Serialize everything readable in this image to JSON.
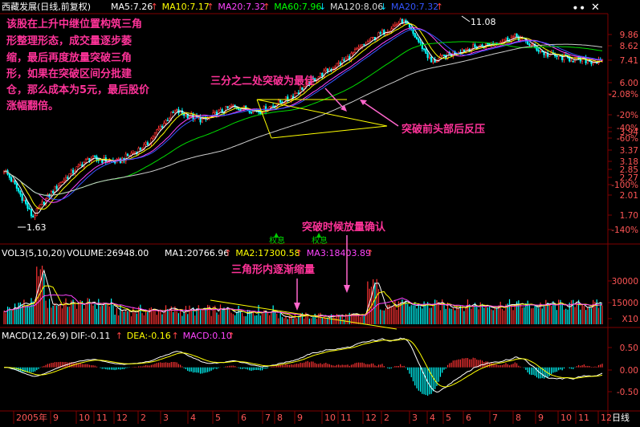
{
  "header": {
    "stock_name": "西藏发展(日线,前复权)",
    "ma_items": [
      {
        "label": "MA5:7.26",
        "arrow": "↑",
        "color": "#ffffff"
      },
      {
        "label": "MA10:7.17",
        "arrow": "↑",
        "color": "#ffff00"
      },
      {
        "label": "MA20:7.32",
        "arrow": "↑",
        "color": "#ff44ff"
      },
      {
        "label": "MA60:7.96",
        "arrow": "↓",
        "color": "#00ff00"
      },
      {
        "label": "MA120:8.06",
        "arrow": "↓",
        "color": "#dddddd"
      },
      {
        "label": "MA20:7.32",
        "arrow": "↑",
        "color": "#3355ff"
      }
    ]
  },
  "volume_header": {
    "label": "VOL3(5,10,20)",
    "volume": "VOLUME:26948.00",
    "ma_items": [
      {
        "label": "MA1:20766.96",
        "arrow": "↑",
        "color": "#ffffff"
      },
      {
        "label": "MA2:17300.58",
        "arrow": "↑",
        "color": "#ffff00"
      },
      {
        "label": "MA3:18403.89",
        "arrow": "↑",
        "color": "#ff44ff"
      }
    ]
  },
  "macd_header": {
    "label": "MACD(12,26,9)",
    "items": [
      {
        "label": "DIF:-0.11",
        "arrow": "↑",
        "color": "#ffffff"
      },
      {
        "label": "DEA:-0.16",
        "arrow": "↑",
        "color": "#ffff00"
      },
      {
        "label": "MACD:0.10",
        "arrow": "↑",
        "color": "#ff44ff"
      }
    ]
  },
  "annotations": {
    "main_note": [
      "该股在上升中继位置构筑三角",
      "形整理形态，成交量逐步萎",
      "缩，最后再度放量突破三角",
      "形，如果在突破区间分批建",
      "仓，那么成本为5元，最后股价",
      "涨幅翻倍。"
    ],
    "breakout_point": "三分之二处突破为最佳",
    "pullback": "突破前头部后反压",
    "volume_confirm": "突破时候放量确认",
    "volume_shrink": "三角形内逐渐缩量",
    "ex_rights_1": "权息",
    "ex_rights_2": "权息",
    "high_label": "11.08",
    "low_label": "1.63"
  },
  "price_axis": [
    "9.86",
    "8.62",
    "7.41",
    "6.00",
    "-2.08%",
    "-20%",
    "-40%",
    "3.94",
    "-60%",
    "3.37",
    "3.18",
    "2.85",
    "2.27",
    "-100%",
    "2.01",
    "1.70",
    "-140%"
  ],
  "volume_axis": [
    "30000",
    "15000",
    "X10"
  ],
  "macd_axis": [
    "0.50",
    "0.00",
    "-0.50"
  ],
  "date_axis": [
    "2005年",
    "9",
    "10",
    "11",
    "12",
    "2",
    "3",
    "4",
    "5",
    "6",
    "7",
    "8",
    "9",
    "10",
    "11",
    "12",
    "2",
    "3",
    "4",
    "5",
    "6",
    "7",
    "8",
    "9",
    "10",
    "11",
    "12"
  ],
  "period_label": "日线",
  "icons": {
    "display": "ellipsis-icon",
    "close": "close-icon"
  },
  "chart_data": {
    "type": "candlestick",
    "title": "西藏发展(日线,前复权)",
    "price_range": [
      1.3,
      11.6
    ],
    "price_anchor_points": [
      {
        "x": "2005 (start)",
        "y": 2.6
      },
      {
        "x": "2005 (low)",
        "y": 1.63
      },
      {
        "x": "2006-01",
        "y": 2.3
      },
      {
        "x": "2006-03",
        "y": 2.9
      },
      {
        "x": "2006-05",
        "y": 2.8
      },
      {
        "x": "2006-06",
        "y": 3.3
      },
      {
        "x": "2006-07",
        "y": 4.6
      },
      {
        "x": "2006-08",
        "y": 4.2
      },
      {
        "x": "2006-09",
        "y": 4.8
      },
      {
        "x": "2006-10",
        "y": 4.6
      },
      {
        "x": "2006-11",
        "y": 5.2
      },
      {
        "x": "2006-12",
        "y": 6.4
      },
      {
        "x": "2007-02",
        "y": 7.6
      },
      {
        "x": "2007-04",
        "y": 9.4
      },
      {
        "x": "2007-05 (high)",
        "y": 11.08
      },
      {
        "x": "2007-06",
        "y": 7.4
      },
      {
        "x": "2007-07",
        "y": 8.3
      },
      {
        "x": "2007-08",
        "y": 8.8
      },
      {
        "x": "2007-09",
        "y": 9.5
      },
      {
        "x": "2007-10",
        "y": 8.0
      },
      {
        "x": "2007-11",
        "y": 7.6
      },
      {
        "x": "2007-12",
        "y": 7.4
      }
    ],
    "volume_range": [
      0,
      45000
    ],
    "macd_range": [
      -1.0,
      0.65
    ],
    "triangle_pattern": {
      "upper_line": [
        5.1,
        4.5
      ],
      "lower_line": [
        3.9,
        4.4
      ],
      "period": "2006-09 to 2006-11"
    }
  }
}
